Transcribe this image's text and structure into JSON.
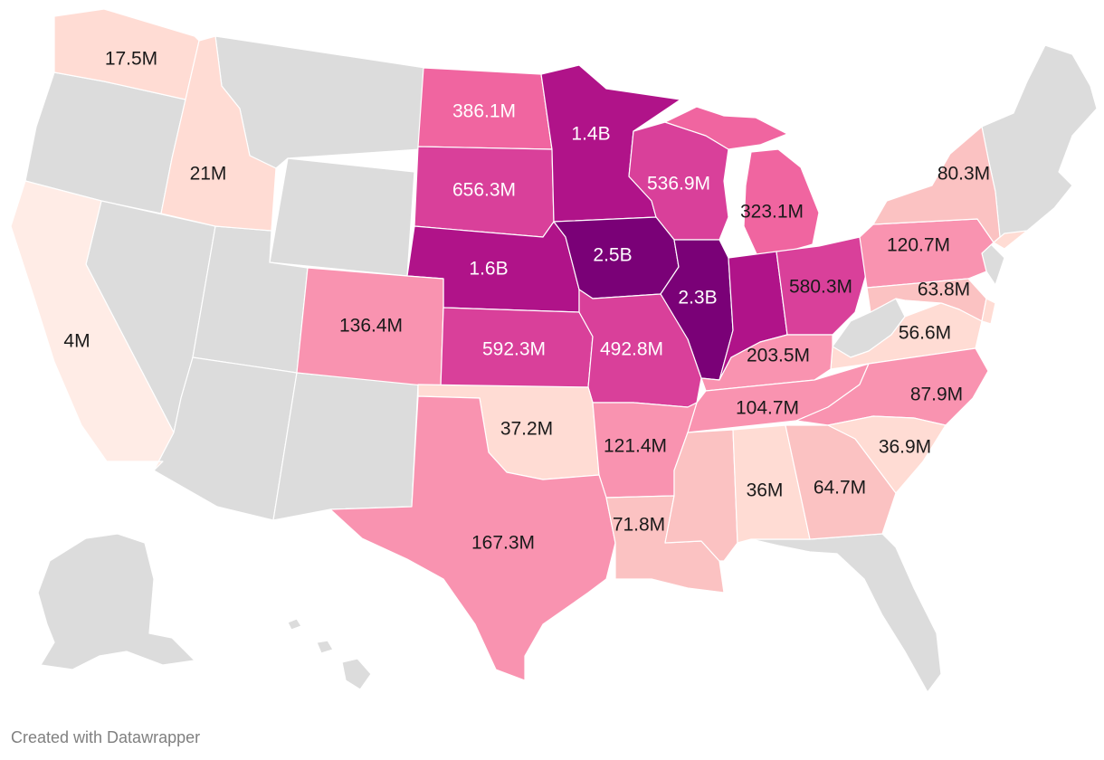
{
  "footer": {
    "credit": "Created with Datawrapper"
  },
  "colors": {
    "no_data": "#dcdcdc",
    "border": "#ffffff",
    "label_dark": "#1a1a1a",
    "label_light": "#ffffff",
    "credit_text": "#808080",
    "scale": [
      "#ffece6",
      "#ffdcd4",
      "#fbc2c2",
      "#f993b0",
      "#f065a0",
      "#d9409a",
      "#b01389",
      "#7a0177"
    ]
  },
  "map_data": {
    "type": "choropleth",
    "region": "United States",
    "labeled_states": [
      {
        "state": "Washington",
        "label": "17.5M",
        "level": 1
      },
      {
        "state": "Idaho",
        "label": "21M",
        "level": 1
      },
      {
        "state": "California",
        "label": "4M",
        "level": 0
      },
      {
        "state": "North Dakota",
        "label": "386.1M",
        "level": 4
      },
      {
        "state": "South Dakota",
        "label": "656.3M",
        "level": 5
      },
      {
        "state": "Minnesota",
        "label": "1.4B",
        "level": 6
      },
      {
        "state": "Wisconsin",
        "label": "536.9M",
        "level": 5
      },
      {
        "state": "Michigan",
        "label": "323.1M",
        "level": 4
      },
      {
        "state": "Nebraska",
        "label": "1.6B",
        "level": 6
      },
      {
        "state": "Iowa",
        "label": "2.5B",
        "level": 7
      },
      {
        "state": "Illinois",
        "label": "2.3B",
        "level": 7
      },
      {
        "state": "Indiana",
        "label": "",
        "level": 6
      },
      {
        "state": "Ohio",
        "label": "580.3M",
        "level": 5
      },
      {
        "state": "Pennsylvania",
        "label": "120.7M",
        "level": 3
      },
      {
        "state": "New York",
        "label": "80.3M",
        "level": 2
      },
      {
        "state": "Maryland",
        "label": "63.8M",
        "level": 2
      },
      {
        "state": "Virginia",
        "label": "56.6M",
        "level": 1
      },
      {
        "state": "Colorado",
        "label": "136.4M",
        "level": 3
      },
      {
        "state": "Kansas",
        "label": "592.3M",
        "level": 5
      },
      {
        "state": "Missouri",
        "label": "492.8M",
        "level": 5
      },
      {
        "state": "Kentucky",
        "label": "203.5M",
        "level": 3
      },
      {
        "state": "North Carolina",
        "label": "87.9M",
        "level": 3
      },
      {
        "state": "Tennessee",
        "label": "104.7M",
        "level": 3
      },
      {
        "state": "Oklahoma",
        "label": "37.2M",
        "level": 1
      },
      {
        "state": "Arkansas",
        "label": "121.4M",
        "level": 3
      },
      {
        "state": "Texas",
        "label": "167.3M",
        "level": 3
      },
      {
        "state": "Louisiana",
        "label": "71.8M",
        "level": 2
      },
      {
        "state": "Mississippi",
        "label": "",
        "level": 2
      },
      {
        "state": "Alabama",
        "label": "36M",
        "level": 1
      },
      {
        "state": "Georgia",
        "label": "64.7M",
        "level": 2
      },
      {
        "state": "South Carolina",
        "label": "36.9M",
        "level": 1
      },
      {
        "state": "Delaware",
        "label": "",
        "level": 1
      },
      {
        "state": "New Jersey",
        "label": "",
        "level": 1
      }
    ]
  }
}
